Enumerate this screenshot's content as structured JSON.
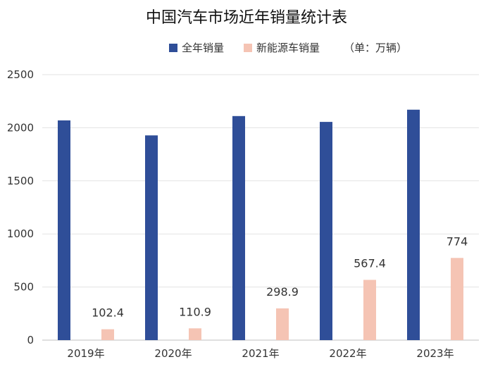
{
  "chart_data": {
    "type": "bar",
    "title": "中国汽车市场近年销量统计表",
    "unit_note": "（单：万辆）",
    "categories": [
      "2019年",
      "2020年",
      "2021年",
      "2022年",
      "2023年"
    ],
    "series": [
      {
        "name": "全年销量",
        "color": "#2f4e98",
        "values": [
          2069,
          1928,
          2110,
          2055,
          2170
        ]
      },
      {
        "name": "新能源车销量",
        "color": "#f5c4b4",
        "values": [
          102.4,
          110.9,
          298.9,
          567.4,
          774
        ],
        "data_labels": [
          "102.4",
          "110.9",
          "298.9",
          "567.4",
          "774"
        ]
      }
    ],
    "ylim": [
      0,
      2500
    ],
    "yticks": [
      0,
      500,
      1000,
      1500,
      2000,
      2500
    ],
    "grid": true,
    "legend": "top-center"
  }
}
